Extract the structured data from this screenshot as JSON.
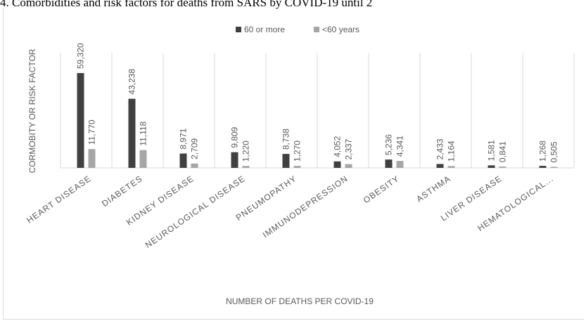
{
  "caption": "4. Comorbidities and risk factors for deaths from SARS by COVID-19 until 2",
  "chart_data": {
    "type": "bar",
    "title": "",
    "xlabel": "NUMBER OF DEATHS PER COVID-19",
    "ylabel": "CORMOBITY OR RISK FACTOR",
    "legend_position": "top",
    "grid": "vertical separators",
    "categories": [
      "HEART DISEASE",
      "DIABETES",
      "KIDNEY DISEASE",
      "NEUROLOGICAL DISEASE",
      "PNEUMOPATHY",
      "IMMUNODEPRESSION",
      "OBESITY",
      "ASTHMA",
      "LIVER DISEASE",
      "HEMATOLOGICAL..."
    ],
    "series": [
      {
        "name": "60 or more",
        "color": "#404040",
        "values": [
          59.32,
          43.238,
          8.971,
          9.809,
          8.738,
          4.052,
          5.236,
          2.433,
          1.581,
          1.268
        ],
        "labels": [
          "59,320",
          "43,238",
          "8,971",
          "9,809",
          "8,738",
          "4,052",
          "5,236",
          "2,433",
          "1,581",
          "1,268"
        ]
      },
      {
        "name": "<60 years",
        "color": "#a6a6a6",
        "values": [
          11.77,
          11.118,
          2.709,
          1.22,
          1.27,
          2.337,
          4.341,
          1.164,
          0.841,
          0.505
        ],
        "labels": [
          "11,770",
          "11,118",
          "2,709",
          "1,220",
          "1,270",
          "2,337",
          "4,341",
          "1,164",
          "0,841",
          "0,505"
        ]
      }
    ],
    "ylim": [
      0,
      59.32
    ]
  }
}
